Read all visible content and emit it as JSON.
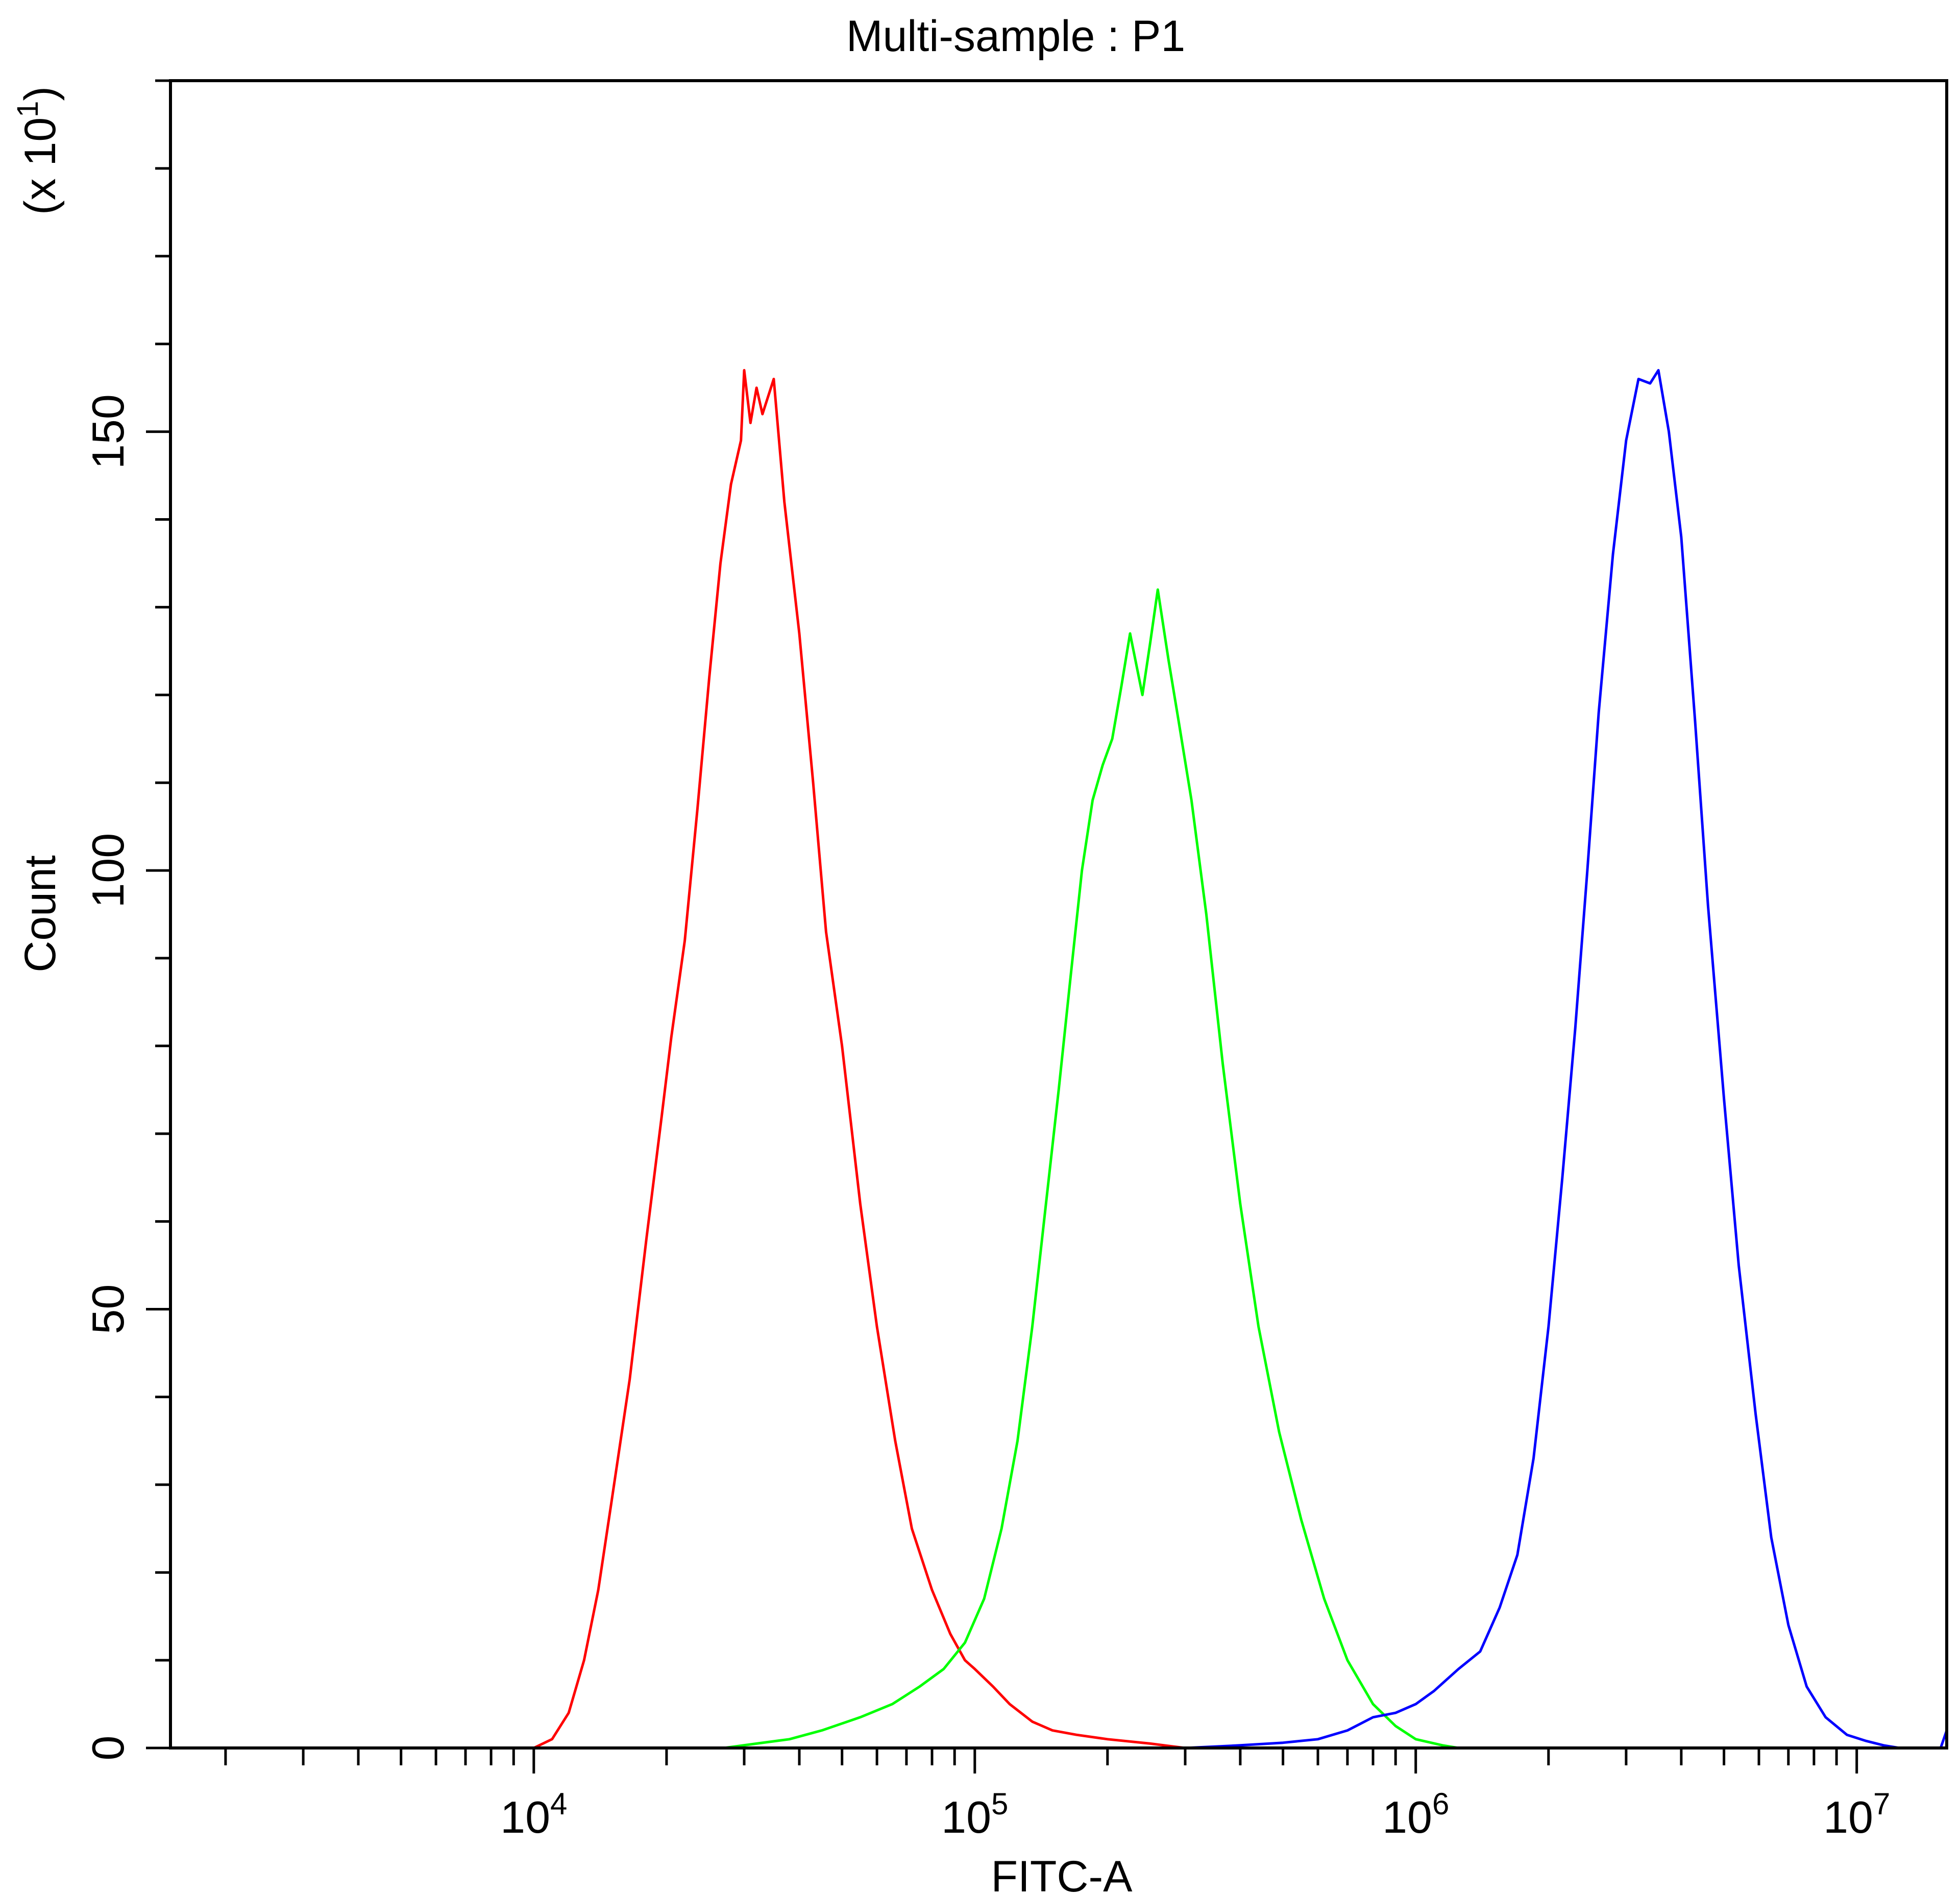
{
  "chart_data": {
    "type": "line",
    "title": "Multi-sample : P1",
    "xlabel": "FITC-A",
    "ylabel": "Count",
    "y_multiplier_label": "(x 10",
    "y_multiplier_exp": "1",
    "y_multiplier_close": ")",
    "x_scale": "log",
    "xlim": [
      1500,
      16000000
    ],
    "ylim": [
      0,
      190
    ],
    "x_tick_base": "10",
    "x_ticks": [
      {
        "value": 10000,
        "exp": "4"
      },
      {
        "value": 100000,
        "exp": "5"
      },
      {
        "value": 1000000,
        "exp": "6"
      },
      {
        "value": 10000000,
        "exp": "7"
      }
    ],
    "y_ticks": [
      {
        "value": 0,
        "label": "0"
      },
      {
        "value": 50,
        "label": "50"
      },
      {
        "value": 100,
        "label": "100"
      },
      {
        "value": 150,
        "label": "150"
      }
    ],
    "grid": false,
    "legend": "none",
    "series": [
      {
        "color": "#ff0000",
        "points": [
          [
            10000,
            0
          ],
          [
            11000,
            1
          ],
          [
            12000,
            4
          ],
          [
            13000,
            10
          ],
          [
            14000,
            18
          ],
          [
            15000,
            28
          ],
          [
            16500,
            42
          ],
          [
            18000,
            58
          ],
          [
            19500,
            72
          ],
          [
            20500,
            81
          ],
          [
            22000,
            92
          ],
          [
            23500,
            107
          ],
          [
            25000,
            122
          ],
          [
            26500,
            135
          ],
          [
            28000,
            144
          ],
          [
            29500,
            149
          ],
          [
            30000,
            157
          ],
          [
            31000,
            151
          ],
          [
            32000,
            155
          ],
          [
            33000,
            152
          ],
          [
            35000,
            156
          ],
          [
            37000,
            142
          ],
          [
            40000,
            127
          ],
          [
            43000,
            110
          ],
          [
            46000,
            93
          ],
          [
            50000,
            80
          ],
          [
            55000,
            62
          ],
          [
            60000,
            48
          ],
          [
            66000,
            35
          ],
          [
            72000,
            25
          ],
          [
            80000,
            18
          ],
          [
            88000,
            13
          ],
          [
            95000,
            10
          ],
          [
            100000,
            9
          ],
          [
            110000,
            7
          ],
          [
            120000,
            5
          ],
          [
            135000,
            3
          ],
          [
            150000,
            2
          ],
          [
            170000,
            1.5
          ],
          [
            200000,
            1
          ],
          [
            250000,
            0.5
          ],
          [
            300000,
            0
          ]
        ]
      },
      {
        "color": "#00ff00",
        "points": [
          [
            27000,
            0
          ],
          [
            32000,
            0.5
          ],
          [
            38000,
            1
          ],
          [
            45000,
            2
          ],
          [
            55000,
            3.5
          ],
          [
            65000,
            5
          ],
          [
            75000,
            7
          ],
          [
            85000,
            9
          ],
          [
            95000,
            12
          ],
          [
            105000,
            17
          ],
          [
            115000,
            25
          ],
          [
            125000,
            35
          ],
          [
            135000,
            48
          ],
          [
            145000,
            62
          ],
          [
            155000,
            75
          ],
          [
            165000,
            88
          ],
          [
            175000,
            100
          ],
          [
            185000,
            108
          ],
          [
            195000,
            112
          ],
          [
            205000,
            115
          ],
          [
            215000,
            121
          ],
          [
            225000,
            127
          ],
          [
            240000,
            120
          ],
          [
            250000,
            126
          ],
          [
            260000,
            132
          ],
          [
            275000,
            124
          ],
          [
            290000,
            117
          ],
          [
            310000,
            108
          ],
          [
            335000,
            95
          ],
          [
            365000,
            78
          ],
          [
            400000,
            62
          ],
          [
            440000,
            48
          ],
          [
            490000,
            36
          ],
          [
            550000,
            26
          ],
          [
            620000,
            17
          ],
          [
            700000,
            10
          ],
          [
            800000,
            5
          ],
          [
            900000,
            2.5
          ],
          [
            1000000,
            1
          ],
          [
            1150000,
            0.3
          ],
          [
            1250000,
            0
          ]
        ]
      },
      {
        "color": "#0000ff",
        "points": [
          [
            300000,
            0
          ],
          [
            400000,
            0.3
          ],
          [
            500000,
            0.6
          ],
          [
            600000,
            1
          ],
          [
            700000,
            2
          ],
          [
            800000,
            3.5
          ],
          [
            900000,
            4
          ],
          [
            1000000,
            5
          ],
          [
            1100000,
            6.5
          ],
          [
            1250000,
            9
          ],
          [
            1400000,
            11
          ],
          [
            1550000,
            16
          ],
          [
            1700000,
            22
          ],
          [
            1850000,
            33
          ],
          [
            2000000,
            48
          ],
          [
            2150000,
            65
          ],
          [
            2300000,
            82
          ],
          [
            2450000,
            100
          ],
          [
            2600000,
            118
          ],
          [
            2800000,
            136
          ],
          [
            3000000,
            149
          ],
          [
            3200000,
            156
          ],
          [
            3400000,
            155.5
          ],
          [
            3550000,
            157
          ],
          [
            3750000,
            150
          ],
          [
            4000000,
            138
          ],
          [
            4300000,
            117
          ],
          [
            4600000,
            96
          ],
          [
            5000000,
            74
          ],
          [
            5400000,
            55
          ],
          [
            5900000,
            38
          ],
          [
            6400000,
            24
          ],
          [
            7000000,
            14
          ],
          [
            7700000,
            7
          ],
          [
            8500000,
            3.5
          ],
          [
            9500000,
            1.5
          ],
          [
            10500000,
            0.8
          ],
          [
            11500000,
            0.3
          ],
          [
            12500000,
            0
          ],
          [
            15500000,
            0
          ],
          [
            16000000,
            2
          ]
        ]
      }
    ]
  }
}
